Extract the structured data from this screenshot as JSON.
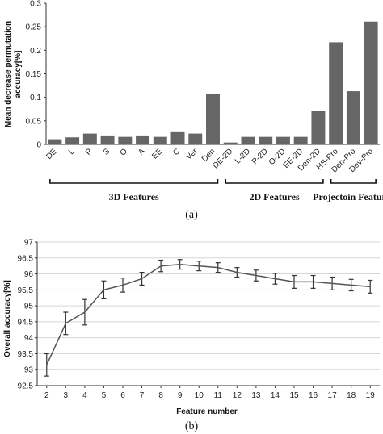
{
  "chart_data": [
    {
      "type": "bar",
      "caption": "(a)",
      "ylabel_lines": [
        "Mean decrease permutation",
        "accuracy[%]"
      ],
      "ylim": [
        0,
        0.3
      ],
      "yticks": [
        "0",
        "0.05",
        "0.1",
        "0.15",
        "0.2",
        "0.25",
        "0.3"
      ],
      "grid": false,
      "color": "#666666",
      "categories": [
        "DE",
        "L",
        "P",
        "S",
        "O",
        "A",
        "EE",
        "C",
        "Ver",
        "Den",
        "DE-2D",
        "L-2D",
        "P-2D",
        "O-2D",
        "EE-2D",
        "Den-2D",
        "HS-Pro",
        "Den-Pro",
        "Dev-Pro"
      ],
      "values": [
        0.011,
        0.015,
        0.023,
        0.019,
        0.016,
        0.019,
        0.016,
        0.026,
        0.023,
        0.108,
        0.004,
        0.016,
        0.016,
        0.016,
        0.016,
        0.072,
        0.217,
        0.113,
        0.261
      ],
      "groups": [
        {
          "label": "3D Features",
          "from": 0,
          "to": 9
        },
        {
          "label": "2D Features",
          "from": 10,
          "to": 15
        },
        {
          "label": "Projectoin Features",
          "from": 16,
          "to": 18
        }
      ]
    },
    {
      "type": "line",
      "caption": "(b)",
      "xlabel": "Feature number",
      "ylabel": "Overall accuracy[%]",
      "ylim": [
        92.5,
        97
      ],
      "yticks": [
        "92.5",
        "93",
        "93.5",
        "94",
        "94.5",
        "95",
        "95.5",
        "96",
        "96.5",
        "97"
      ],
      "xticks": [
        "2",
        "3",
        "4",
        "5",
        "6",
        "7",
        "8",
        "9",
        "10",
        "11",
        "12",
        "13",
        "14",
        "15",
        "16",
        "17",
        "18",
        "19"
      ],
      "grid": true,
      "color": "#555555",
      "x": [
        2,
        3,
        4,
        5,
        6,
        7,
        8,
        9,
        10,
        11,
        12,
        13,
        14,
        15,
        16,
        17,
        18,
        19
      ],
      "y": [
        93.15,
        94.45,
        94.8,
        95.5,
        95.65,
        95.85,
        96.25,
        96.3,
        96.25,
        96.2,
        96.05,
        95.95,
        95.85,
        95.75,
        95.75,
        95.7,
        95.65,
        95.6
      ],
      "error": [
        0.35,
        0.35,
        0.4,
        0.28,
        0.22,
        0.2,
        0.18,
        0.15,
        0.15,
        0.15,
        0.15,
        0.17,
        0.17,
        0.2,
        0.2,
        0.2,
        0.18,
        0.2
      ]
    }
  ]
}
